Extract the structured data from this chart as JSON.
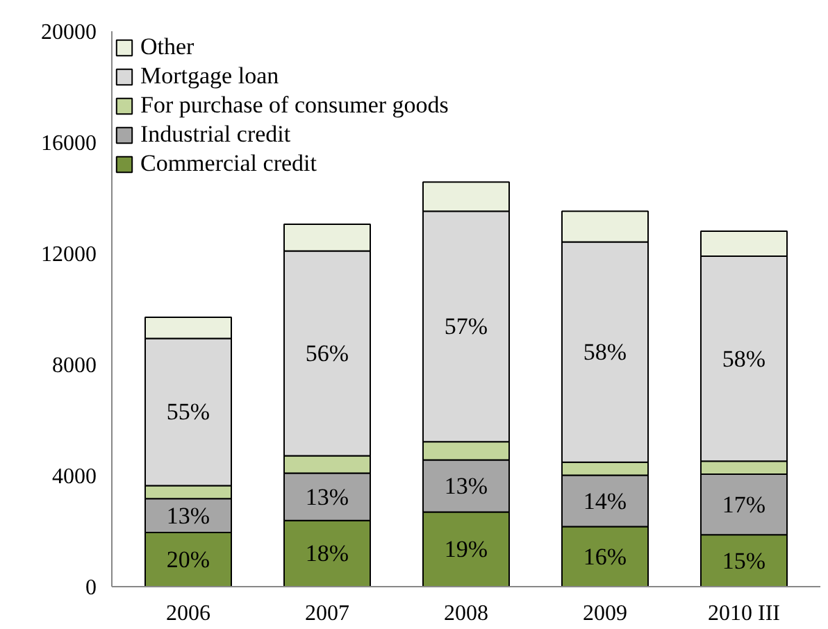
{
  "chart_data": {
    "type": "bar",
    "stacked": true,
    "categories": [
      "2006",
      "2007",
      "2008",
      "2009",
      "2010 III"
    ],
    "series": [
      {
        "name": "Commercial credit",
        "color": "#77933c",
        "values": [
          1950,
          2380,
          2690,
          2160,
          1870
        ]
      },
      {
        "name": "Industrial credit",
        "color": "#a6a6a6",
        "values": [
          1220,
          1710,
          1870,
          1850,
          2180
        ]
      },
      {
        "name": "For purchase of consumer goods",
        "color": "#c3d69b",
        "values": [
          470,
          620,
          660,
          470,
          470
        ]
      },
      {
        "name": "Mortgage loan",
        "color": "#d9d9d9",
        "values": [
          5300,
          7380,
          8300,
          7930,
          7380
        ]
      },
      {
        "name": "Other",
        "color": "#ebf1de",
        "values": [
          760,
          960,
          1050,
          1110,
          900
        ]
      }
    ],
    "annotations": [
      {
        "text": "20%",
        "x": "2006",
        "y": 1950
      },
      {
        "text": "18%",
        "x": "2007",
        "y": 2380
      },
      {
        "text": "19%",
        "x": "2008",
        "y": 2690
      },
      {
        "text": "16%",
        "x": "2009",
        "y": 2160
      },
      {
        "text": "15%",
        "x": "2010 III",
        "y": 1870
      },
      {
        "text": "13%",
        "x": "2006",
        "y": 3170
      },
      {
        "text": "13%",
        "x": "2007",
        "y": 4090
      },
      {
        "text": "13%",
        "x": "2008",
        "y": 4560
      },
      {
        "text": "14%",
        "x": "2009",
        "y": 4010
      },
      {
        "text": "17%",
        "x": "2010 III",
        "y": 4050
      },
      "55%",
      "56%",
      "57%",
      "58%",
      "58%"
    ],
    "ylim": [
      0,
      20000
    ],
    "yticks": [
      0,
      4000,
      8000,
      12000,
      16000,
      20000
    ],
    "grid": false,
    "legend": "top left"
  }
}
